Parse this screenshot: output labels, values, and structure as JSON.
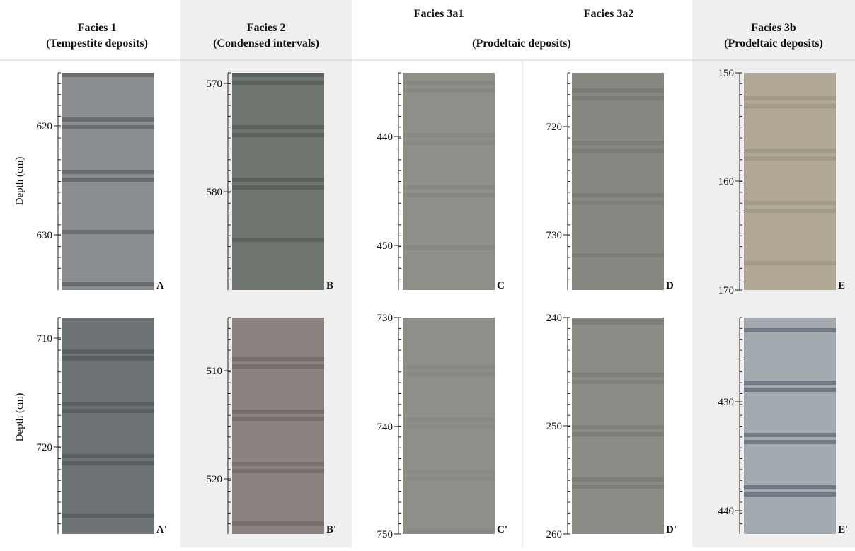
{
  "headers": [
    {
      "title": "Facies 1",
      "subtitle": "(Tempestite deposits)"
    },
    {
      "title": "Facies 2",
      "subtitle": "(Condensed intervals)"
    },
    {
      "title": "Facies 3a1"
    },
    {
      "title": "Facies 3a2"
    },
    {
      "title": "Facies 3b",
      "subtitle": "(Prodeltaic deposits)"
    }
  ],
  "shared_subtitle": "(Prodeltaic deposits)",
  "axis_label": "Depth (cm)",
  "panels": [
    {
      "label": "A",
      "ticks": [
        620,
        630
      ]
    },
    {
      "label": "B",
      "ticks": [
        570,
        580
      ]
    },
    {
      "label": "C",
      "ticks": [
        440,
        450
      ]
    },
    {
      "label": "D",
      "ticks": [
        720,
        730
      ]
    },
    {
      "label": "E",
      "ticks": [
        150,
        160,
        170
      ]
    },
    {
      "label": "A'",
      "ticks": [
        710,
        720
      ]
    },
    {
      "label": "B'",
      "ticks": [
        510,
        520
      ]
    },
    {
      "label": "C'",
      "ticks": [
        730,
        740,
        750
      ]
    },
    {
      "label": "D'",
      "ticks": [
        240,
        250,
        260
      ]
    },
    {
      "label": "E'",
      "ticks": [
        430,
        440
      ]
    }
  ]
}
